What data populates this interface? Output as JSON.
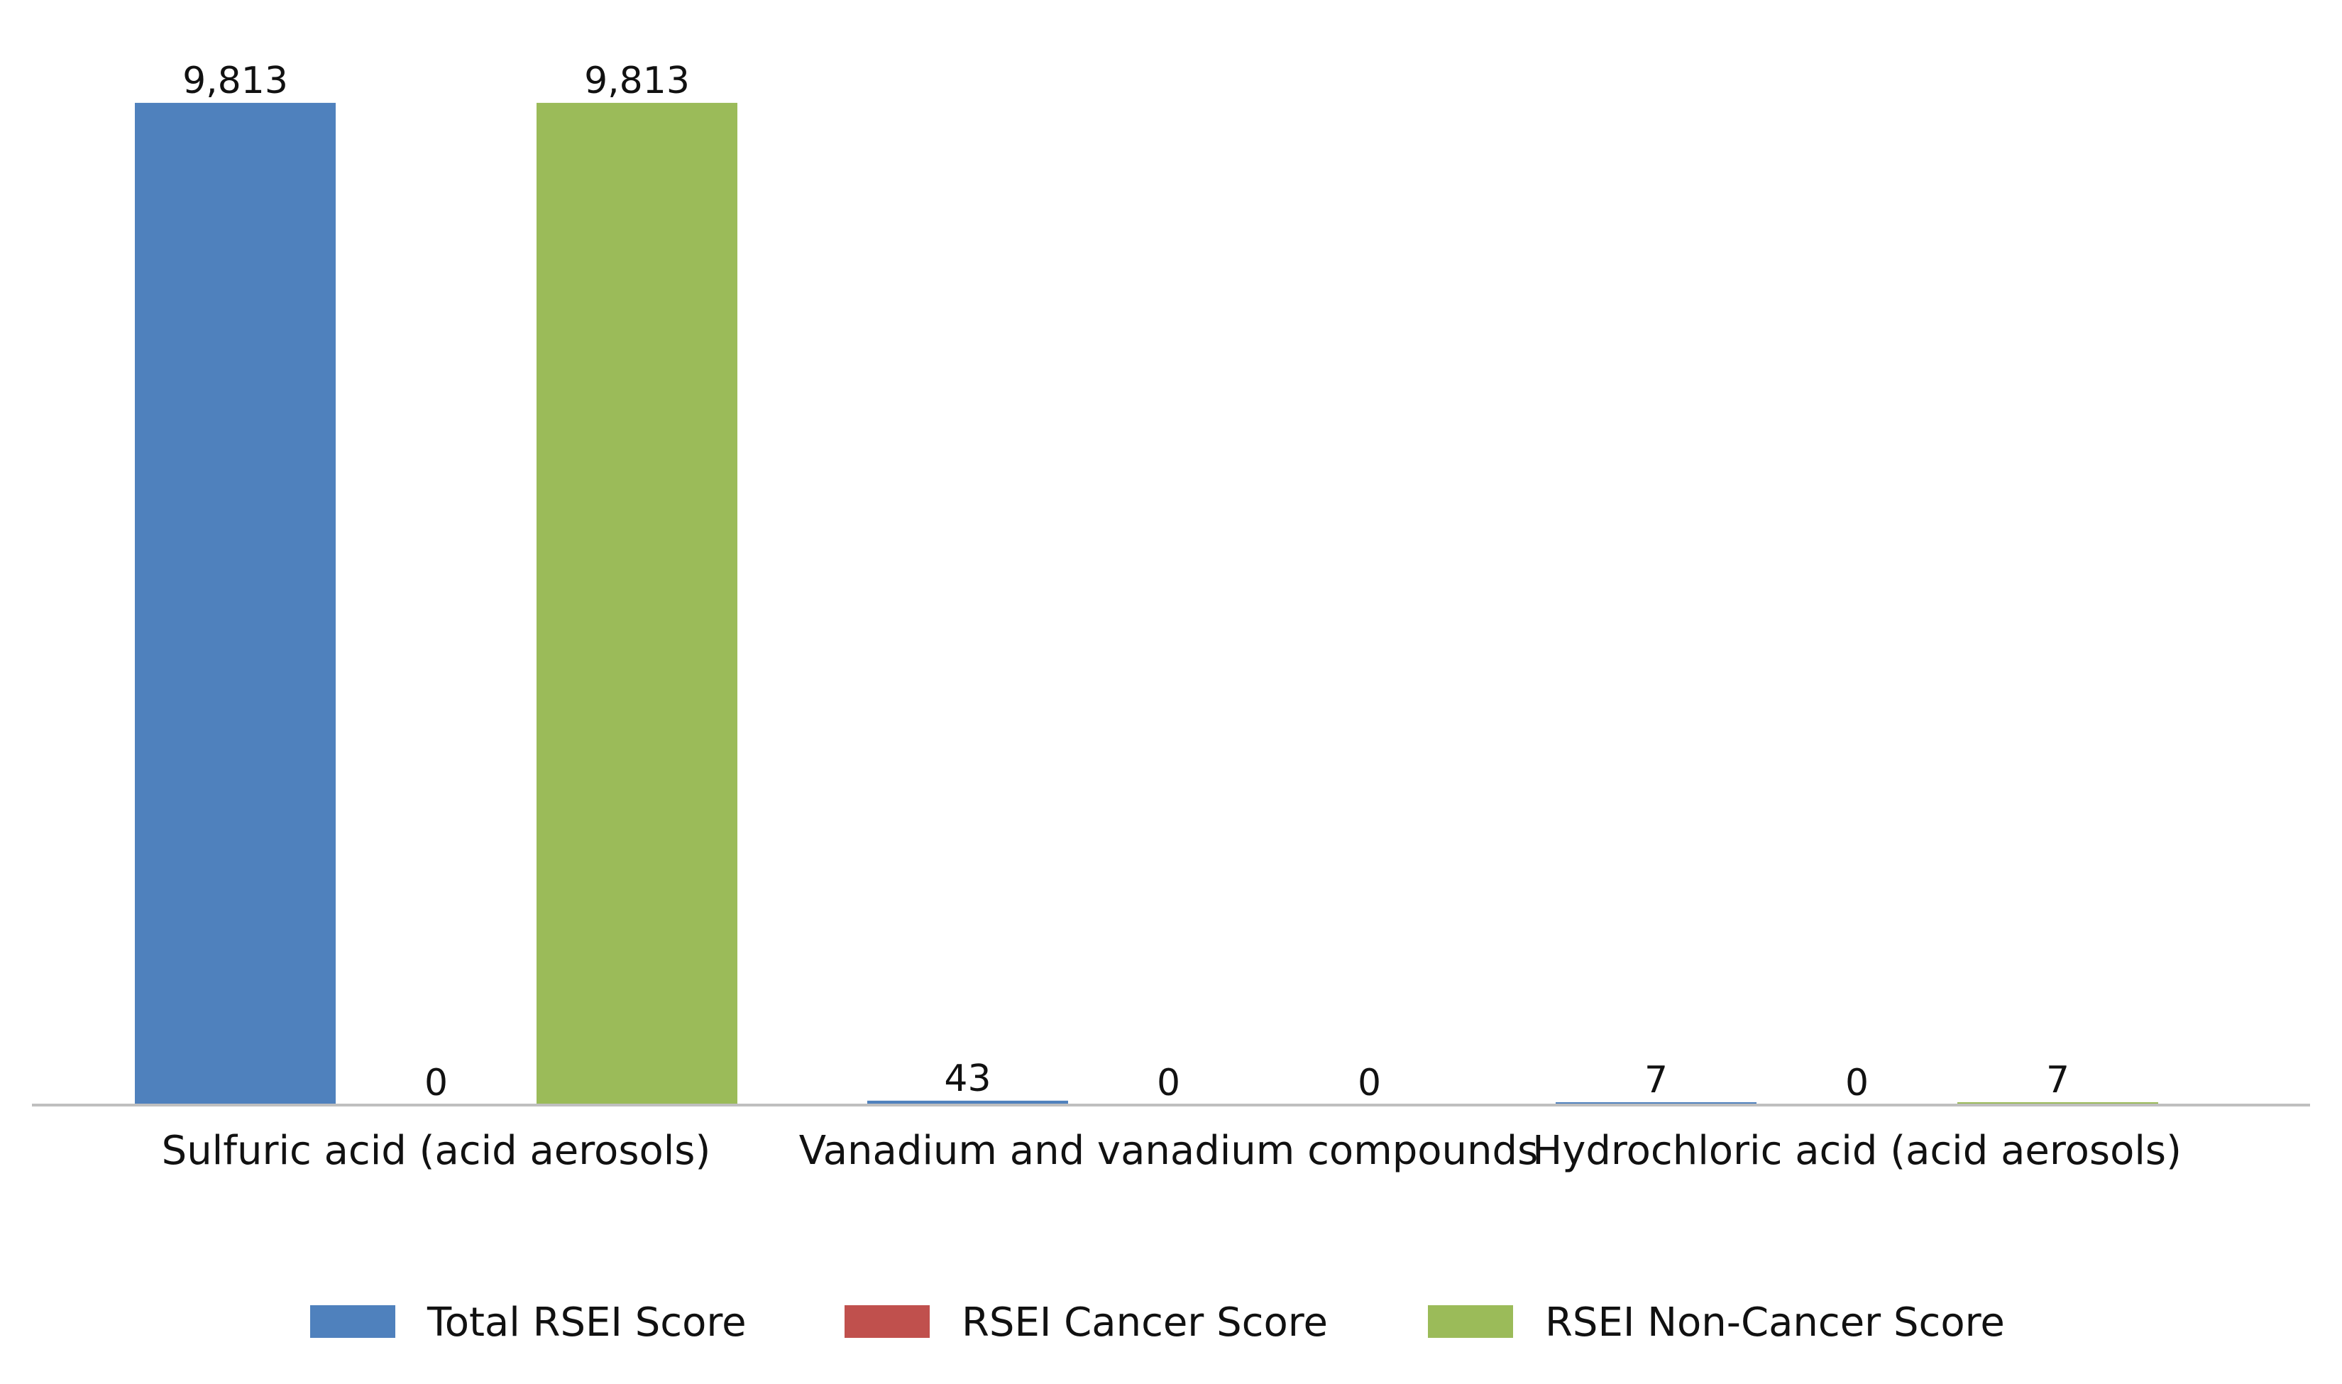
{
  "chart_data": {
    "type": "bar",
    "title": "",
    "xlabel": "",
    "ylabel": "",
    "ylim": [
      0,
      10000
    ],
    "grid": false,
    "legend_position": "bottom",
    "categories": [
      "Sulfuric acid (acid aerosols)",
      "Vanadium and vanadium compounds",
      "Hydrochloric acid (acid aerosols)"
    ],
    "series": [
      {
        "name": "Total RSEI Score",
        "color": "#4f81bd",
        "values": [
          9813,
          43,
          7
        ],
        "labels": [
          "9,813",
          "43",
          "7"
        ]
      },
      {
        "name": "RSEI Cancer Score",
        "color": "#c0504d",
        "values": [
          0,
          0,
          0
        ],
        "labels": [
          "0",
          "0",
          "0"
        ]
      },
      {
        "name": "RSEI Non-Cancer Score",
        "color": "#9bbb59",
        "values": [
          9813,
          0,
          7
        ],
        "labels": [
          "9,813",
          "0",
          "7"
        ]
      }
    ]
  }
}
